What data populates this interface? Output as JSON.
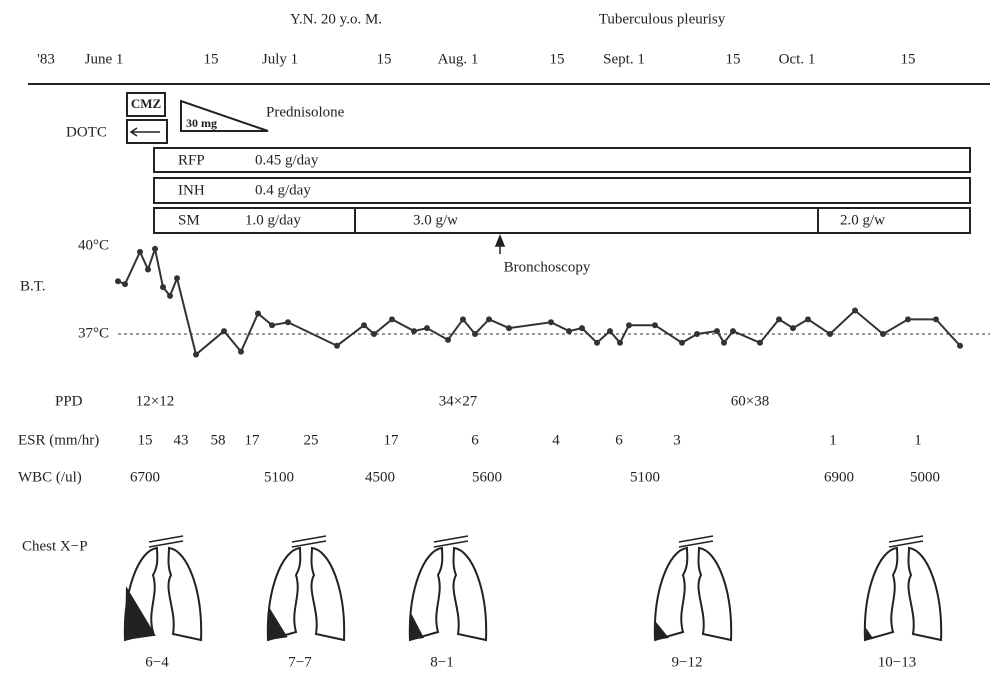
{
  "header": {
    "patient": "Y.N.  20 y.o.  M.",
    "diagnosis": "Tuberculous pleurisy"
  },
  "timeline": {
    "year": "'83",
    "ticks": [
      "June 1",
      "15",
      "July 1",
      "15",
      "Aug. 1",
      "15",
      "Sept. 1",
      "15",
      "Oct. 1",
      "15"
    ]
  },
  "treatments": {
    "cmz": "CMZ",
    "dotc": "DOTC",
    "prednisolone": "Prednisolone",
    "prednisolone_dose": "30 mg",
    "rfp": {
      "name": "RFP",
      "dose": "0.45 g/day"
    },
    "inh": {
      "name": "INH",
      "dose": "0.4 g/day"
    },
    "sm": {
      "name": "SM",
      "doses": [
        "1.0 g/day",
        "3.0 g/w",
        "2.0 g/w"
      ]
    }
  },
  "bronchoscopy": "Bronchoscopy",
  "temperature": {
    "label": "B.T.",
    "ticks": [
      {
        "value": 40,
        "label": "40°C"
      },
      {
        "value": 37,
        "label": "37°C"
      }
    ],
    "values": [
      38.8,
      38.7,
      39.8,
      39.2,
      39.9,
      38.6,
      38.3,
      38.9,
      36.3,
      37.1,
      36.4,
      37.7,
      37.3,
      37.4,
      36.6,
      37.3,
      37.0,
      37.5,
      37.1,
      37.2,
      36.8,
      37.5,
      37.0,
      37.5,
      37.2,
      37.4,
      37.1,
      37.2,
      36.7,
      37.1,
      36.7,
      37.3,
      37.3,
      36.7,
      37.0,
      37.1,
      36.7,
      37.1,
      36.7,
      37.5,
      37.2,
      37.5,
      37.0,
      37.8,
      37.0,
      37.5,
      37.5,
      36.6
    ]
  },
  "labs": {
    "ppd": {
      "label": "PPD",
      "values": [
        "12×12",
        "34×27",
        "60×38"
      ]
    },
    "esr": {
      "label": "ESR (mm/hr)",
      "values": [
        15,
        43,
        58,
        17,
        25,
        17,
        6,
        4,
        6,
        3,
        1,
        1
      ]
    },
    "wbc": {
      "label": "WBC (/ul)",
      "values": [
        6700,
        5100,
        4500,
        5600,
        5100,
        6900,
        5000
      ]
    }
  },
  "chest_xp": {
    "label": "Chest X−P",
    "dates": [
      "6−4",
      "7−7",
      "8−1",
      "9−12",
      "10−13"
    ]
  }
}
